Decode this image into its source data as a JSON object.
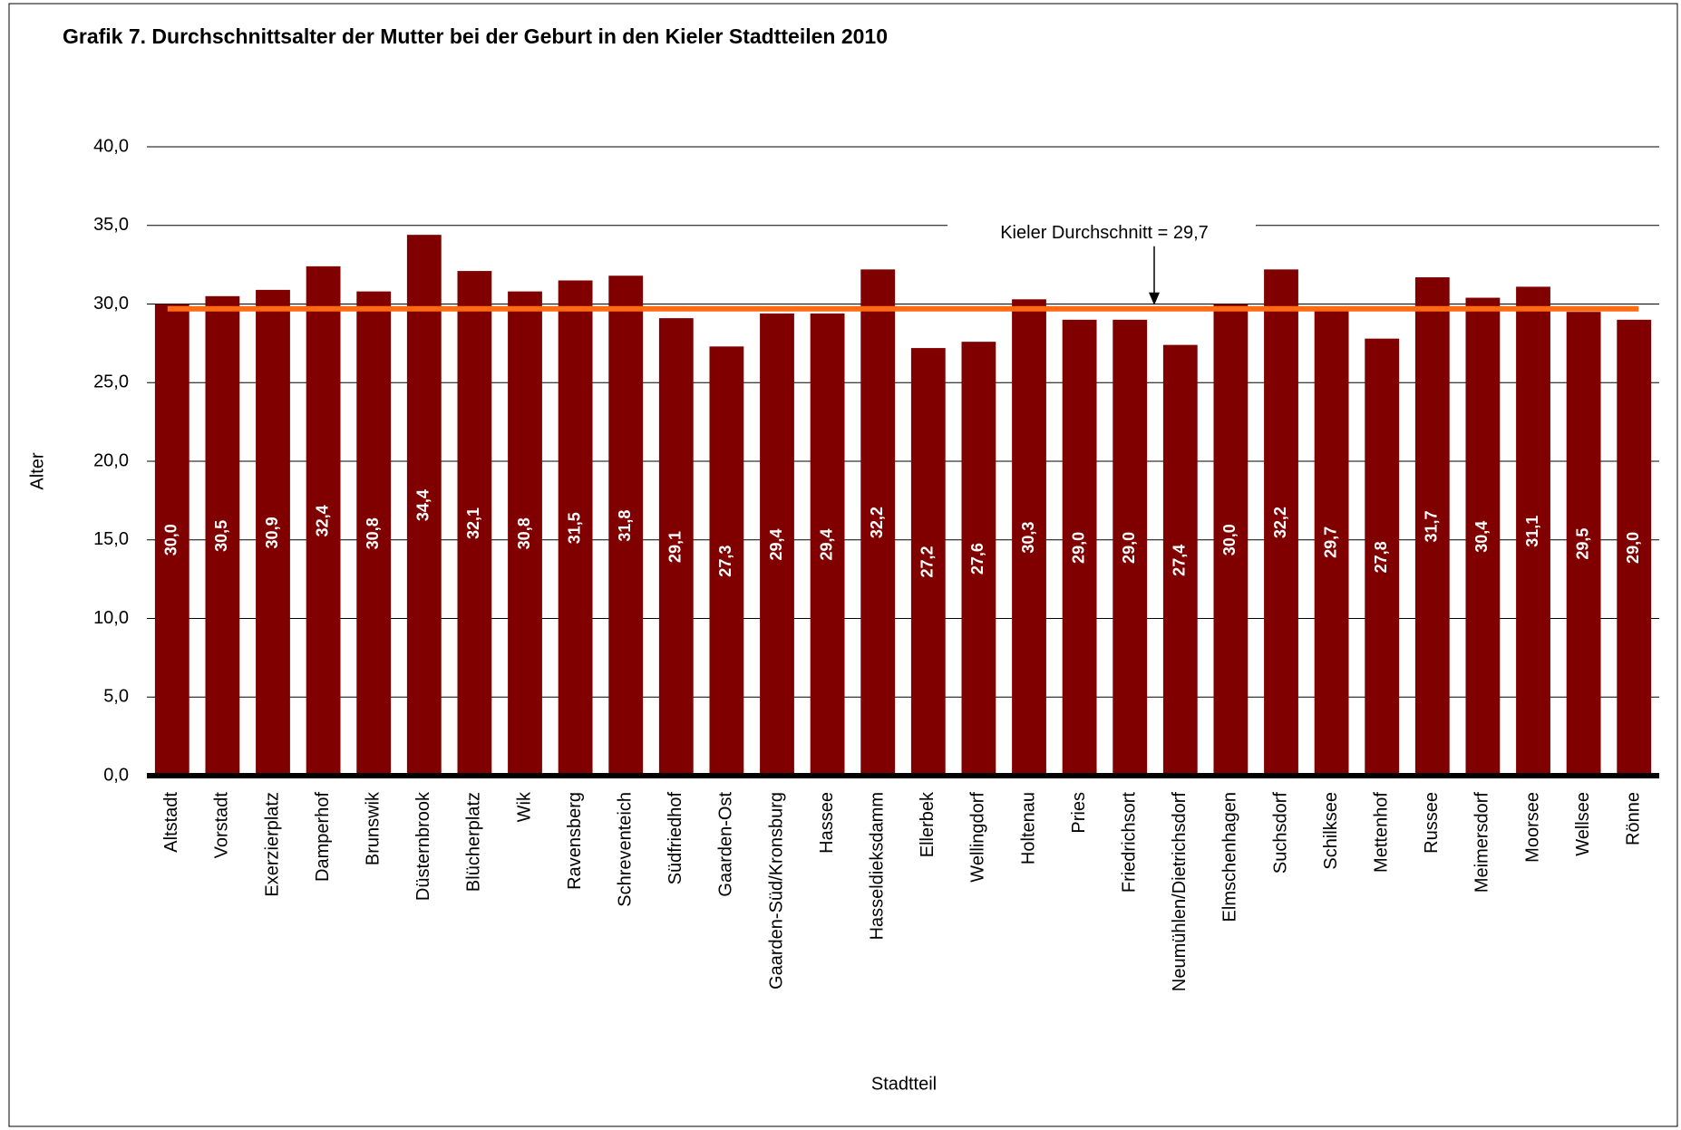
{
  "chart_data": {
    "type": "bar",
    "title": "Grafik 7.  Durchschnittsalter der Mutter bei der Geburt in den Kieler Stadtteilen 2010",
    "y_label": "Alter",
    "x_label": "Stadtteil",
    "categories": [
      "Altstadt",
      "Vorstadt",
      "Exerzierplatz",
      "Damperhof",
      "Brunswik",
      "Düsternbrook",
      "Blücherplatz",
      "Wik",
      "Ravensberg",
      "Schreventeich",
      "Südfriedhof",
      "Gaarden-Ost",
      "Gaarden-Süd/Kronsburg",
      "Hassee",
      "Hasseldieksdamm",
      "Ellerbek",
      "Wellingdorf",
      "Holtenau",
      "Pries",
      "Friedrichsort",
      "Neumühlen/Dietrichsdorf",
      "Elmschenhagen",
      "Suchsdorf",
      "Schilksee",
      "Mettenhof",
      "Russee",
      "Meimersdorf",
      "Moorsee",
      "Wellsee",
      "Rönne"
    ],
    "values": [
      30.0,
      30.5,
      30.9,
      32.4,
      30.8,
      34.4,
      32.1,
      30.8,
      31.5,
      31.8,
      29.1,
      27.3,
      29.4,
      29.4,
      32.2,
      27.2,
      27.6,
      30.3,
      29.0,
      29.0,
      27.4,
      30.0,
      32.2,
      29.7,
      27.8,
      31.7,
      30.4,
      31.1,
      29.5,
      29.0
    ],
    "value_labels": [
      "30,0",
      "30,5",
      "30,9",
      "32,4",
      "30,8",
      "34,4",
      "32,1",
      "30,8",
      "31,5",
      "31,8",
      "29,1",
      "27,3",
      "29,4",
      "29,4",
      "32,2",
      "27,2",
      "27,6",
      "30,3",
      "29,0",
      "29,0",
      "27,4",
      "30,0",
      "32,2",
      "29,7",
      "27,8",
      "31,7",
      "30,4",
      "31,1",
      "29,5",
      "29,0"
    ],
    "color": "#800000",
    "ylim": [
      0,
      40
    ],
    "yticks": [
      {
        "value": 0,
        "label": "0,0"
      },
      {
        "value": 5,
        "label": "5,0"
      },
      {
        "value": 10,
        "label": "10,0"
      },
      {
        "value": 15,
        "label": "15,0"
      },
      {
        "value": 20,
        "label": "20,0"
      },
      {
        "value": 25,
        "label": "25,0"
      },
      {
        "value": 30,
        "label": "30,0"
      },
      {
        "value": 35,
        "label": "35,0"
      },
      {
        "value": 40,
        "label": "40,0"
      }
    ],
    "grid": true,
    "average": 29.7,
    "average_color": "#ff6a13",
    "average_annotation": "Kieler Durchschnitt = 29,7"
  }
}
